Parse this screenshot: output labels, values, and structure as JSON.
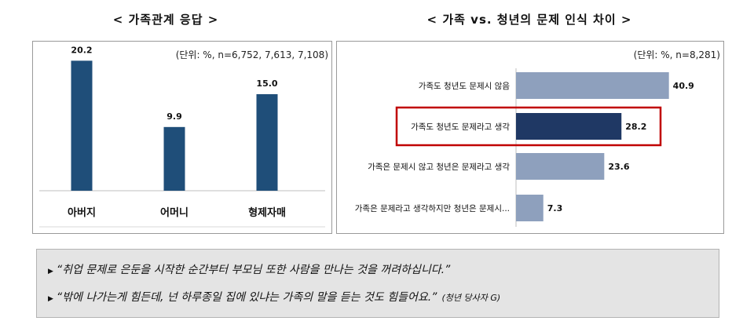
{
  "left_title": "< 가족관계 응답 >",
  "right_title": "< 가족 vs. 청년의 문제 인식 차이 >",
  "chart_data": [
    {
      "type": "bar",
      "unit_note": "(단위: %, n=6,752, 7,613, 7,108)",
      "categories": [
        "아버지",
        "어머니",
        "형제자매"
      ],
      "values": [
        20.2,
        9.9,
        15.0
      ],
      "value_labels": [
        "20.2",
        "9.9",
        "15.0"
      ],
      "ylim": [
        0,
        25
      ],
      "color": "#1f4e79"
    },
    {
      "type": "bar",
      "orientation": "horizontal",
      "unit_note": "(단위: %, n=8,281)",
      "categories": [
        "가족도 청년도 문제시 않음",
        "가족도 청년도 문제라고 생각",
        "가족은 문제시 않고 청년은 문제라고 생각",
        "가족은 문제라고 생각하지만 청년은 문제시..."
      ],
      "values": [
        40.9,
        28.2,
        23.6,
        7.3
      ],
      "value_labels": [
        "40.9",
        "28.2",
        "23.6",
        "7.3"
      ],
      "xlim": [
        0,
        45
      ],
      "highlight_index": 1,
      "colors": [
        "#8ea0bd",
        "#1f3864",
        "#8ea0bd",
        "#8ea0bd"
      ],
      "highlight_color": "#c00000"
    }
  ],
  "quotes": {
    "q1": "“취업 문제로 은둔을 시작한 순간부터 부모님 또한 사람을 만나는 것을 꺼려하십니다.”",
    "q2": "“밖에 나가는게 힘든데, 넌 하루종일 집에 있냐는 가족의 말을 듣는 것도 힘들어요.”",
    "q2_source": "(청년 당사자 G)",
    "bullet": "▶"
  }
}
